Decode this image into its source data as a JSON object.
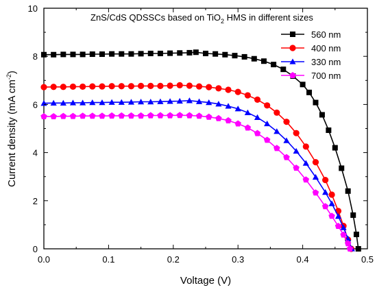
{
  "colors": {
    "560 nm": "#000000",
    "400 nm": "#ff0000",
    "330 nm": "#0000ff",
    "700 nm": "#ff00ff"
  },
  "chart_data": {
    "type": "line",
    "title": "ZnS/CdS QDSSCs based on TiO",
    "title_sub": "2",
    "title_rest": " HMS in different sizes",
    "xlabel": "Voltage (V)",
    "ylabel_main": "Current density (mA cm",
    "ylabel_sup": "-2",
    "ylabel_end": ")",
    "xlim": [
      0,
      0.5
    ],
    "ylim": [
      0,
      10
    ],
    "xticks": [
      "0.0",
      "0.1",
      "0.2",
      "0.3",
      "0.4",
      "0.5"
    ],
    "yticks": [
      "0",
      "2",
      "4",
      "6",
      "8",
      "10"
    ],
    "legend_position": "top-right",
    "series": [
      {
        "name": "560 nm",
        "marker": "square",
        "color": "#000000",
        "points": [
          [
            0.0,
            8.07
          ],
          [
            0.015,
            8.07
          ],
          [
            0.03,
            8.08
          ],
          [
            0.045,
            8.08
          ],
          [
            0.06,
            8.08
          ],
          [
            0.075,
            8.09
          ],
          [
            0.09,
            8.09
          ],
          [
            0.105,
            8.1
          ],
          [
            0.12,
            8.1
          ],
          [
            0.135,
            8.1
          ],
          [
            0.15,
            8.11
          ],
          [
            0.165,
            8.12
          ],
          [
            0.18,
            8.12
          ],
          [
            0.195,
            8.13
          ],
          [
            0.21,
            8.14
          ],
          [
            0.225,
            8.15
          ],
          [
            0.235,
            8.17
          ],
          [
            0.25,
            8.12
          ],
          [
            0.265,
            8.1
          ],
          [
            0.28,
            8.07
          ],
          [
            0.295,
            8.03
          ],
          [
            0.31,
            7.98
          ],
          [
            0.325,
            7.9
          ],
          [
            0.34,
            7.8
          ],
          [
            0.355,
            7.66
          ],
          [
            0.37,
            7.46
          ],
          [
            0.385,
            7.18
          ],
          [
            0.4,
            6.83
          ],
          [
            0.41,
            6.5
          ],
          [
            0.42,
            6.08
          ],
          [
            0.43,
            5.57
          ],
          [
            0.44,
            4.93
          ],
          [
            0.45,
            4.2
          ],
          [
            0.46,
            3.35
          ],
          [
            0.47,
            2.4
          ],
          [
            0.478,
            1.4
          ],
          [
            0.483,
            0.6
          ],
          [
            0.486,
            0.0
          ]
        ]
      },
      {
        "name": "400 nm",
        "marker": "circle",
        "color": "#ff0000",
        "points": [
          [
            0.0,
            6.72
          ],
          [
            0.015,
            6.73
          ],
          [
            0.03,
            6.73
          ],
          [
            0.045,
            6.74
          ],
          [
            0.06,
            6.74
          ],
          [
            0.075,
            6.75
          ],
          [
            0.09,
            6.75
          ],
          [
            0.105,
            6.76
          ],
          [
            0.12,
            6.76
          ],
          [
            0.135,
            6.76
          ],
          [
            0.15,
            6.77
          ],
          [
            0.165,
            6.77
          ],
          [
            0.18,
            6.77
          ],
          [
            0.195,
            6.78
          ],
          [
            0.21,
            6.8
          ],
          [
            0.225,
            6.78
          ],
          [
            0.24,
            6.75
          ],
          [
            0.255,
            6.72
          ],
          [
            0.27,
            6.67
          ],
          [
            0.285,
            6.61
          ],
          [
            0.3,
            6.52
          ],
          [
            0.315,
            6.38
          ],
          [
            0.33,
            6.2
          ],
          [
            0.345,
            5.96
          ],
          [
            0.36,
            5.66
          ],
          [
            0.375,
            5.28
          ],
          [
            0.39,
            4.81
          ],
          [
            0.405,
            4.25
          ],
          [
            0.42,
            3.6
          ],
          [
            0.435,
            2.86
          ],
          [
            0.445,
            2.25
          ],
          [
            0.455,
            1.57
          ],
          [
            0.463,
            0.95
          ],
          [
            0.47,
            0.38
          ],
          [
            0.475,
            0.0
          ]
        ]
      },
      {
        "name": "330 nm",
        "marker": "triangle",
        "color": "#0000ff",
        "points": [
          [
            0.0,
            6.05
          ],
          [
            0.015,
            6.06
          ],
          [
            0.03,
            6.06
          ],
          [
            0.045,
            6.07
          ],
          [
            0.06,
            6.07
          ],
          [
            0.075,
            6.08
          ],
          [
            0.09,
            6.08
          ],
          [
            0.105,
            6.09
          ],
          [
            0.12,
            6.09
          ],
          [
            0.135,
            6.1
          ],
          [
            0.15,
            6.11
          ],
          [
            0.165,
            6.11
          ],
          [
            0.18,
            6.12
          ],
          [
            0.195,
            6.13
          ],
          [
            0.21,
            6.14
          ],
          [
            0.225,
            6.16
          ],
          [
            0.24,
            6.12
          ],
          [
            0.255,
            6.08
          ],
          [
            0.27,
            6.02
          ],
          [
            0.285,
            5.93
          ],
          [
            0.3,
            5.82
          ],
          [
            0.315,
            5.66
          ],
          [
            0.33,
            5.46
          ],
          [
            0.345,
            5.2
          ],
          [
            0.36,
            4.88
          ],
          [
            0.375,
            4.5
          ],
          [
            0.39,
            4.06
          ],
          [
            0.405,
            3.56
          ],
          [
            0.42,
            2.98
          ],
          [
            0.435,
            2.35
          ],
          [
            0.445,
            1.88
          ],
          [
            0.455,
            1.35
          ],
          [
            0.463,
            0.88
          ],
          [
            0.47,
            0.42
          ],
          [
            0.476,
            0.0
          ]
        ]
      },
      {
        "name": "700 nm",
        "marker": "pentagon",
        "color": "#ff00ff",
        "points": [
          [
            0.0,
            5.5
          ],
          [
            0.015,
            5.5
          ],
          [
            0.03,
            5.51
          ],
          [
            0.045,
            5.51
          ],
          [
            0.06,
            5.52
          ],
          [
            0.075,
            5.52
          ],
          [
            0.09,
            5.52
          ],
          [
            0.105,
            5.53
          ],
          [
            0.12,
            5.53
          ],
          [
            0.135,
            5.53
          ],
          [
            0.15,
            5.53
          ],
          [
            0.165,
            5.54
          ],
          [
            0.18,
            5.54
          ],
          [
            0.195,
            5.54
          ],
          [
            0.21,
            5.55
          ],
          [
            0.225,
            5.54
          ],
          [
            0.24,
            5.52
          ],
          [
            0.255,
            5.48
          ],
          [
            0.27,
            5.42
          ],
          [
            0.285,
            5.33
          ],
          [
            0.3,
            5.2
          ],
          [
            0.315,
            5.03
          ],
          [
            0.33,
            4.8
          ],
          [
            0.345,
            4.52
          ],
          [
            0.36,
            4.18
          ],
          [
            0.375,
            3.8
          ],
          [
            0.39,
            3.36
          ],
          [
            0.405,
            2.87
          ],
          [
            0.42,
            2.33
          ],
          [
            0.435,
            1.76
          ],
          [
            0.445,
            1.36
          ],
          [
            0.455,
            0.94
          ],
          [
            0.463,
            0.58
          ],
          [
            0.47,
            0.22
          ],
          [
            0.473,
            0.0
          ]
        ]
      }
    ]
  }
}
